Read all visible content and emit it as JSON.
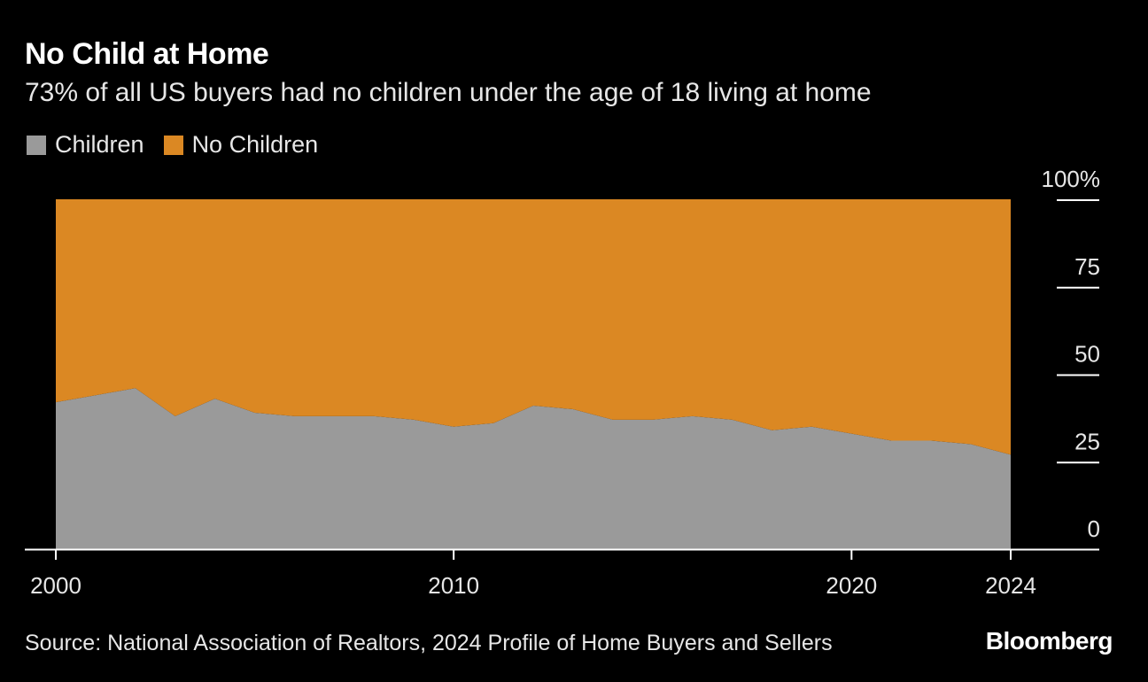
{
  "header": {
    "title": "No Child at Home",
    "subtitle": "73% of all US buyers had no children under the age of 18 living at home"
  },
  "legend": {
    "items": [
      {
        "label": "Children",
        "color": "#9a9a9a"
      },
      {
        "label": "No Children",
        "color": "#db8823"
      }
    ]
  },
  "footer": {
    "source": "Source: National Association of Realtors, 2024 Profile of Home Buyers and Sellers",
    "logo": "Bloomberg"
  },
  "chart_data": {
    "type": "area",
    "stacked": true,
    "x": [
      2000,
      2001,
      2002,
      2003,
      2004,
      2005,
      2006,
      2007,
      2008,
      2009,
      2010,
      2011,
      2012,
      2013,
      2014,
      2015,
      2016,
      2017,
      2018,
      2019,
      2020,
      2021,
      2022,
      2023,
      2024
    ],
    "series": [
      {
        "name": "Children",
        "color": "#9a9a9a",
        "values": [
          42,
          44,
          46,
          38,
          43,
          39,
          38,
          38,
          38,
          37,
          35,
          36,
          41,
          40,
          37,
          37,
          38,
          37,
          34,
          35,
          33,
          31,
          31,
          30,
          27
        ]
      },
      {
        "name": "No Children",
        "color": "#db8823",
        "values": [
          58,
          56,
          54,
          62,
          57,
          61,
          62,
          62,
          62,
          63,
          65,
          64,
          59,
          60,
          63,
          63,
          62,
          63,
          66,
          65,
          67,
          69,
          69,
          70,
          73
        ]
      }
    ],
    "x_ticks": [
      "2000",
      "2010",
      "2020",
      "2024"
    ],
    "y_ticks": [
      "0",
      "25",
      "50",
      "75",
      "100%"
    ],
    "xlim": [
      2000,
      2024
    ],
    "ylim": [
      0,
      100
    ],
    "y_axis_side": "right",
    "grid": false,
    "legend_position": "top-left"
  }
}
